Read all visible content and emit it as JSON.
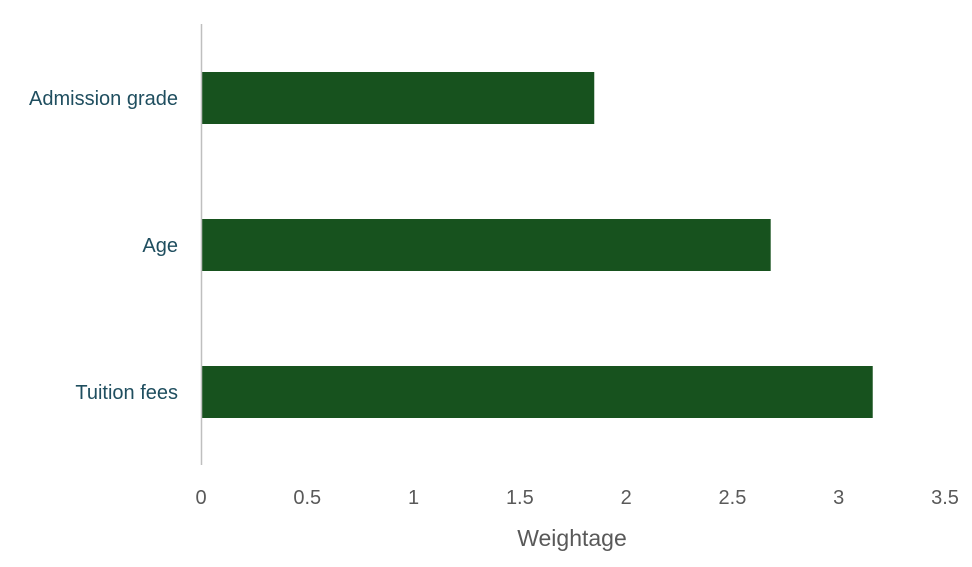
{
  "chart_data": {
    "type": "bar",
    "orientation": "horizontal",
    "categories": [
      "Admission grade",
      "Age",
      "Tuition fees"
    ],
    "values": [
      1.85,
      2.68,
      3.16
    ],
    "xlabel": "Weightage",
    "ylabel": "",
    "xlim": [
      0,
      3.5
    ],
    "xticks": [
      "0",
      "0.5",
      "1",
      "1.5",
      "2",
      "2.5",
      "3",
      "3.5"
    ],
    "grid": false,
    "legend": "none",
    "colors": {
      "bar": "#17521e",
      "category_text": "#1f4e5f",
      "tick_text": "#595959",
      "axis_line": "#bfbfbf"
    }
  }
}
